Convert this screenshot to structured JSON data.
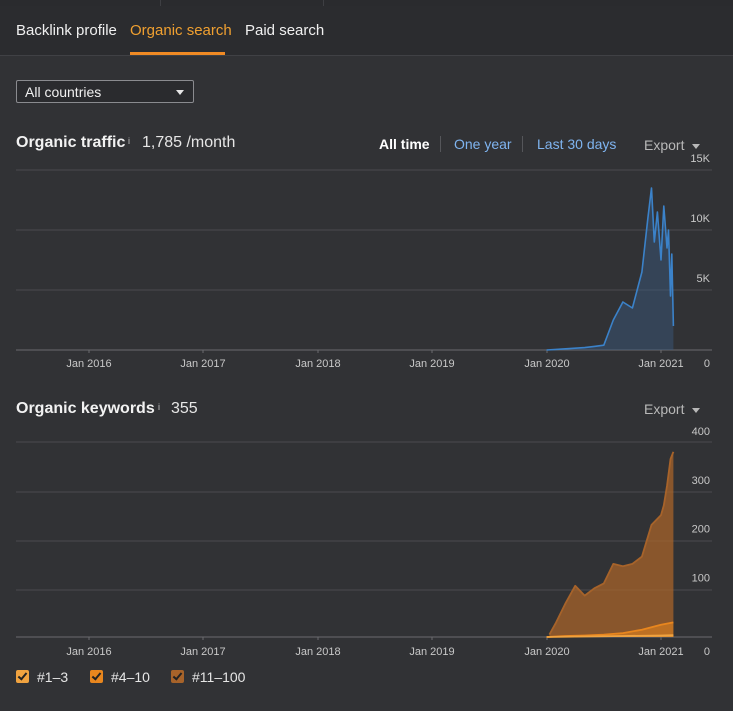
{
  "tabs": [
    {
      "label": "Backlink profile",
      "active": false
    },
    {
      "label": "Organic search",
      "active": true
    },
    {
      "label": "Paid search",
      "active": false
    }
  ],
  "country_select": {
    "value": "All countries"
  },
  "traffic": {
    "title": "Organic traffic",
    "info_mark": "i",
    "value": "1,785 /month",
    "ranges": [
      "All time",
      "One year",
      "Last 30 days"
    ],
    "selected_range": "All time",
    "export_label": "Export"
  },
  "keywords": {
    "title": "Organic keywords",
    "info_mark": "i",
    "value": "355",
    "export_label": "Export"
  },
  "legend": [
    {
      "label": "#1–3",
      "color": "#f0a340"
    },
    {
      "label": "#4–10",
      "color": "#e8861e"
    },
    {
      "label": "#11–100",
      "color": "#a7632a"
    }
  ],
  "colors": {
    "accent": "#f08a24",
    "traffic_line": "#3b82c9",
    "link": "#7fb4f0"
  },
  "chart_data": [
    {
      "type": "area",
      "title": "Organic traffic",
      "x_tick_labels": [
        "Jan 2016",
        "Jan 2017",
        "Jan 2018",
        "Jan 2019",
        "Jan 2020",
        "Jan 2021"
      ],
      "y_tick_labels": [
        "0",
        "5K",
        "10K",
        "15K"
      ],
      "ylim": [
        0,
        15000
      ],
      "grid": true,
      "series": [
        {
          "color": "#3b82c9",
          "x": [
            "2020-01",
            "2020-03",
            "2020-05",
            "2020-06",
            "2020-07",
            "2020-08",
            "2020-09",
            "2020-10",
            "2020-11",
            "2020-11-20",
            "2020-12",
            "2020-12-10",
            "2020-12-20",
            "2021-01",
            "2021-01-10",
            "2021-01-20",
            "2021-01-25",
            "2021-02-01",
            "2021-02-05",
            "2021-02-10"
          ],
          "y": [
            0,
            100,
            200,
            300,
            400,
            2500,
            4000,
            3500,
            6500,
            11000,
            13500,
            9000,
            11500,
            7500,
            12000,
            8500,
            10000,
            4500,
            8000,
            2000
          ]
        }
      ]
    },
    {
      "type": "area",
      "title": "Organic keywords",
      "x_tick_labels": [
        "Jan 2016",
        "Jan 2017",
        "Jan 2018",
        "Jan 2019",
        "Jan 2020",
        "Jan 2021"
      ],
      "y_tick_labels": [
        "0",
        "100",
        "200",
        "300",
        "400"
      ],
      "ylim": [
        0,
        400
      ],
      "grid": true,
      "legend_position": "bottom-left",
      "series": [
        {
          "name": "#11–100",
          "color": "#a7632a",
          "x": [
            "2020-01-10",
            "2020-02",
            "2020-03",
            "2020-04",
            "2020-05",
            "2020-06",
            "2020-07",
            "2020-08",
            "2020-09",
            "2020-10",
            "2020-11",
            "2020-12",
            "2021-01",
            "2021-01-10",
            "2021-01-20",
            "2021-02-01",
            "2021-02-10"
          ],
          "y": [
            5,
            30,
            70,
            105,
            85,
            100,
            110,
            150,
            145,
            150,
            165,
            230,
            250,
            270,
            310,
            365,
            380
          ]
        },
        {
          "name": "#4–10",
          "color": "#e8861e",
          "x": [
            "2020-01",
            "2020-03",
            "2020-05",
            "2020-07",
            "2020-09",
            "2020-11",
            "2021-01",
            "2021-02-10"
          ],
          "y": [
            0,
            2,
            3,
            5,
            8,
            15,
            25,
            30
          ]
        },
        {
          "name": "#1–3",
          "color": "#f0a340",
          "x": [
            "2020-01",
            "2020-05",
            "2020-09",
            "2021-01",
            "2021-02-10"
          ],
          "y": [
            0,
            1,
            2,
            3,
            4
          ]
        }
      ]
    }
  ]
}
